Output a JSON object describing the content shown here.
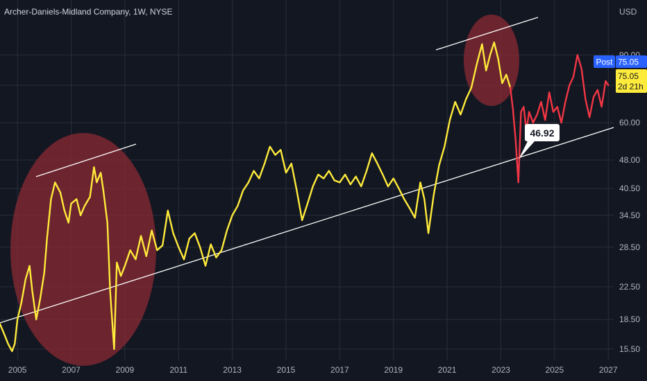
{
  "chart_data": {
    "type": "line",
    "title": "Archer-Daniels-Midland Company, 1W, NYSE",
    "currency": "USD",
    "x_ticks": [
      "2005",
      "2007",
      "2009",
      "2011",
      "2013",
      "2015",
      "2017",
      "2019",
      "2021",
      "2023",
      "2025",
      "2027"
    ],
    "y_ticks": [
      15.5,
      18.5,
      22.5,
      28.5,
      34.5,
      40.5,
      48.0,
      60.0,
      75.05,
      90.0
    ],
    "y_scale": "log",
    "ylim": [
      14.5,
      125
    ],
    "xlim": [
      2004.35,
      2027.2
    ],
    "grid": true,
    "colors": {
      "history": "#ffeb3b",
      "recent": "#f23645",
      "post_badge": "#2962ff",
      "price_badge": "#ffeb3b",
      "highlight": "#8b2a33"
    },
    "series": [
      {
        "color": "#ffeb3b",
        "x": [
          2004.35,
          2004.5,
          2004.65,
          2004.8,
          2004.9,
          2005.0,
          2005.15,
          2005.3,
          2005.45,
          2005.55,
          2005.7,
          2005.85,
          2006.0,
          2006.1,
          2006.25,
          2006.4,
          2006.6,
          2006.75,
          2006.9,
          2007.0,
          2007.2,
          2007.35,
          2007.5,
          2007.7,
          2007.85,
          2007.95,
          2008.1,
          2008.2,
          2008.35,
          2008.45,
          2008.6,
          2008.7,
          2008.85,
          2009.0,
          2009.2,
          2009.4,
          2009.6,
          2009.8,
          2010.0,
          2010.2,
          2010.4,
          2010.6,
          2010.8,
          2011.0,
          2011.2,
          2011.4,
          2011.6,
          2011.8,
          2012.0,
          2012.2,
          2012.4,
          2012.6,
          2012.8,
          2013.0,
          2013.2,
          2013.4,
          2013.6,
          2013.8,
          2014.0,
          2014.2,
          2014.4,
          2014.6,
          2014.8,
          2015.0,
          2015.2,
          2015.4,
          2015.6,
          2015.8,
          2016.0,
          2016.2,
          2016.4,
          2016.6,
          2016.8,
          2017.0,
          2017.2,
          2017.4,
          2017.6,
          2017.8,
          2018.0,
          2018.2,
          2018.4,
          2018.6,
          2018.8,
          2019.0,
          2019.2,
          2019.4,
          2019.6,
          2019.8,
          2020.0,
          2020.15,
          2020.3,
          2020.5,
          2020.7,
          2020.9,
          2021.1,
          2021.3,
          2021.5,
          2021.7,
          2021.9,
          2022.1,
          2022.3,
          2022.45,
          2022.6,
          2022.75,
          2022.9,
          2023.05,
          2023.2,
          2023.35
        ],
        "y": [
          18.0,
          17.0,
          16.0,
          15.3,
          16.0,
          18.5,
          20.5,
          23.5,
          25.5,
          22.0,
          18.5,
          21.0,
          24.5,
          30.0,
          38.0,
          42.0,
          39.5,
          35.5,
          33.0,
          37.0,
          38.0,
          34.5,
          36.5,
          38.5,
          46.0,
          42.0,
          44.5,
          40.0,
          33.0,
          22.0,
          15.5,
          26.0,
          24.0,
          25.5,
          28.0,
          26.5,
          30.5,
          27.0,
          31.5,
          28.0,
          28.8,
          35.5,
          31.0,
          28.5,
          26.5,
          30.0,
          31.0,
          28.5,
          25.5,
          29.0,
          26.8,
          28.0,
          31.5,
          34.5,
          36.5,
          40.0,
          42.0,
          45.0,
          43.0,
          47.0,
          52.0,
          49.5,
          51.0,
          44.5,
          47.0,
          40.0,
          33.5,
          37.0,
          41.0,
          44.0,
          43.0,
          45.0,
          42.5,
          42.0,
          44.0,
          41.5,
          43.5,
          41.0,
          45.0,
          50.0,
          47.0,
          44.0,
          41.0,
          43.0,
          40.5,
          38.0,
          36.0,
          34.0,
          42.0,
          38.0,
          31.0,
          39.0,
          46.5,
          52.0,
          61.0,
          68.0,
          63.0,
          69.0,
          74.0,
          85.0,
          96.0,
          82.0,
          90.0,
          97.0,
          88.0,
          76.0,
          80.0,
          74.0
        ]
      },
      {
        "color": "#f23645",
        "x": [
          2023.35,
          2023.45,
          2023.55,
          2023.65,
          2023.75,
          2023.85,
          2023.95,
          2024.05,
          2024.2,
          2024.35,
          2024.5,
          2024.65,
          2024.8,
          2024.95,
          2025.1,
          2025.25,
          2025.4,
          2025.55,
          2025.7,
          2025.85,
          2026.0,
          2026.15,
          2026.3,
          2026.45,
          2026.6,
          2026.75,
          2026.9,
          2027.0
        ],
        "y": [
          74.0,
          65.0,
          54.0,
          42.0,
          64.0,
          66.0,
          57.0,
          64.0,
          60.0,
          63.0,
          68.0,
          61.0,
          72.0,
          64.0,
          66.0,
          60.0,
          68.0,
          75.0,
          79.0,
          90.0,
          83.0,
          69.0,
          62.0,
          70.0,
          73.0,
          66.0,
          77.0,
          75.05
        ]
      }
    ],
    "annotations": {
      "callout_value": "46.92",
      "post_label": "Post",
      "post_price": "75.05",
      "last_price": "75.05",
      "countdown": "2d 21h"
    }
  }
}
